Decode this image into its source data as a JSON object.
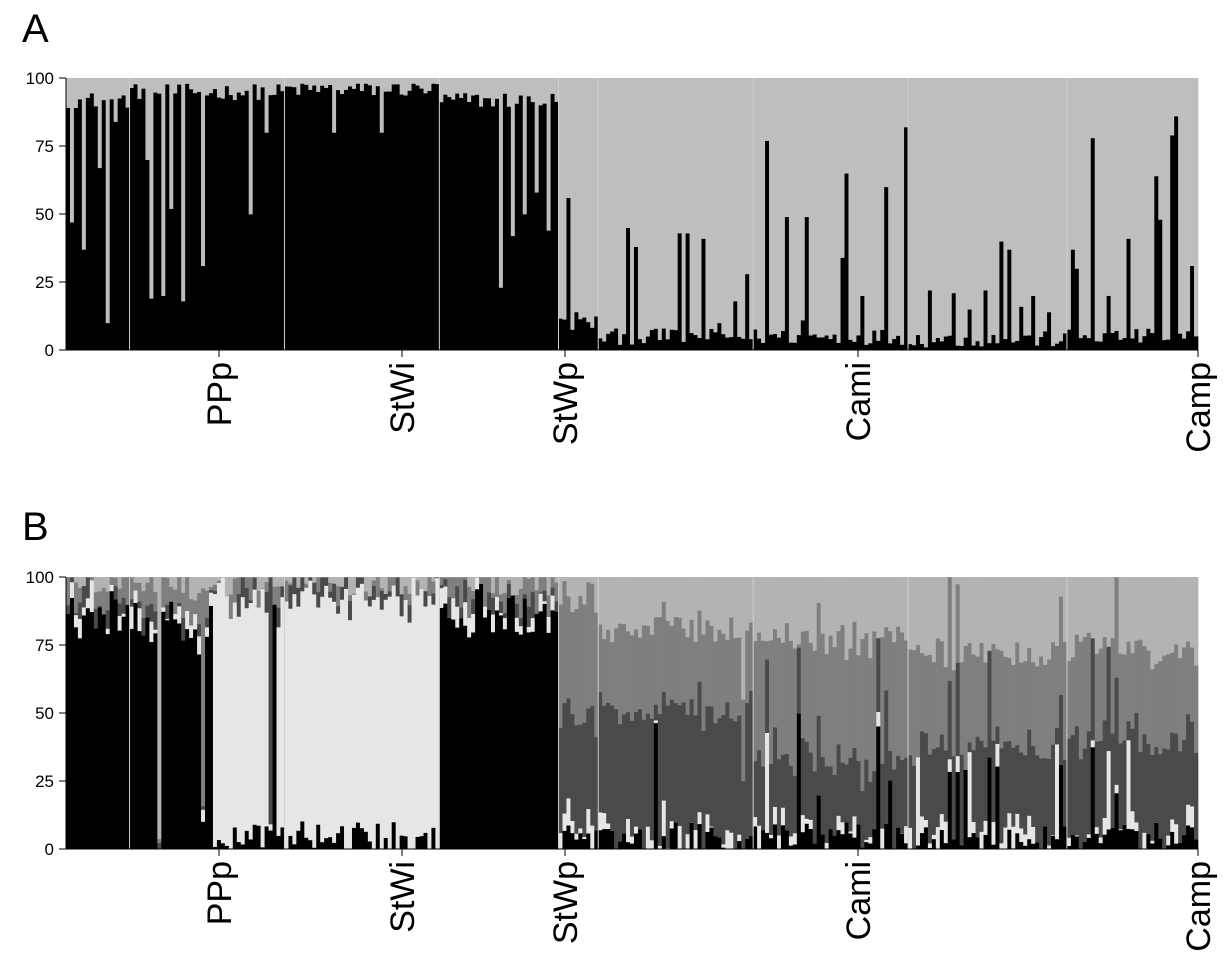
{
  "chart_data": [
    {
      "panel": "A",
      "type": "bar",
      "stacked": true,
      "ylim": [
        0,
        100
      ],
      "yticks": [
        0,
        25,
        50,
        75,
        100
      ],
      "xtick_labels": [
        "PPp",
        "StWi",
        "StWp",
        "Cami",
        "Camp"
      ],
      "colors": [
        "#000000",
        "#bebebe"
      ],
      "n_individuals": 285,
      "group_boundaries": [
        16,
        55,
        94,
        124,
        134,
        173,
        212,
        252
      ],
      "groups": [
        {
          "size": 16,
          "k1_typical": 92,
          "dips": [
            [
              1,
              47
            ],
            [
              4,
              37
            ],
            [
              10,
              10
            ],
            [
              12,
              84
            ],
            [
              8,
              67
            ]
          ]
        },
        {
          "size": 39,
          "k1_typical": 95,
          "dips": [
            [
              4,
              70
            ],
            [
              5,
              19
            ],
            [
              8,
              20
            ],
            [
              10,
              52
            ],
            [
              13,
              18
            ],
            [
              18,
              31
            ],
            [
              30,
              50
            ],
            [
              34,
              80
            ]
          ]
        },
        {
          "size": 39,
          "k1_typical": 96,
          "dips": [
            [
              24,
              80
            ],
            [
              12,
              80
            ]
          ]
        },
        {
          "size": 30,
          "k1_typical": 92,
          "dips": [
            [
              15,
              23
            ],
            [
              18,
              42
            ],
            [
              21,
              50
            ],
            [
              24,
              58
            ],
            [
              27,
              44
            ]
          ]
        },
        {
          "size": 10,
          "k1_typical": 8,
          "dips": [
            [
              2,
              56
            ],
            [
              4,
              14
            ]
          ]
        },
        {
          "size": 39,
          "k1_typical": 3,
          "dips": [
            [
              7,
              45
            ],
            [
              9,
              38
            ],
            [
              16,
              8
            ],
            [
              20,
              43
            ],
            [
              22,
              43
            ],
            [
              26,
              41
            ],
            [
              30,
              10
            ],
            [
              34,
              18
            ],
            [
              37,
              28
            ]
          ]
        },
        {
          "size": 39,
          "k1_typical": 3,
          "dips": [
            [
              3,
              77
            ],
            [
              8,
              49
            ],
            [
              12,
              11
            ],
            [
              13,
              49
            ],
            [
              22,
              34
            ],
            [
              23,
              65
            ],
            [
              27,
              20
            ],
            [
              33,
              60
            ],
            [
              38,
              82
            ]
          ]
        },
        {
          "size": 40,
          "k1_typical": 2,
          "dips": [
            [
              5,
              22
            ],
            [
              11,
              21
            ],
            [
              15,
              15
            ],
            [
              19,
              22
            ],
            [
              23,
              40
            ],
            [
              25,
              37
            ],
            [
              28,
              16
            ],
            [
              31,
              20
            ],
            [
              35,
              14
            ]
          ]
        },
        {
          "size": 33,
          "k1_typical": 3,
          "dips": [
            [
              1,
              37
            ],
            [
              2,
              30
            ],
            [
              6,
              78
            ],
            [
              10,
              20
            ],
            [
              15,
              41
            ],
            [
              22,
              64
            ],
            [
              23,
              48
            ],
            [
              26,
              79
            ],
            [
              27,
              86
            ],
            [
              31,
              31
            ]
          ]
        }
      ]
    },
    {
      "panel": "B",
      "type": "bar",
      "stacked": true,
      "ylim": [
        0,
        100
      ],
      "yticks": [
        0,
        25,
        50,
        75,
        100
      ],
      "xtick_labels": [
        "PPp",
        "StWi",
        "StWp",
        "Cami",
        "Camp"
      ],
      "colors": [
        "#000000",
        "#e6e6e6",
        "#4a4a4a",
        "#7f7f7f",
        "#b3b3b3"
      ],
      "n_individuals": 285,
      "group_boundaries": [
        16,
        55,
        94,
        124,
        134,
        173,
        212,
        252
      ]
    }
  ]
}
